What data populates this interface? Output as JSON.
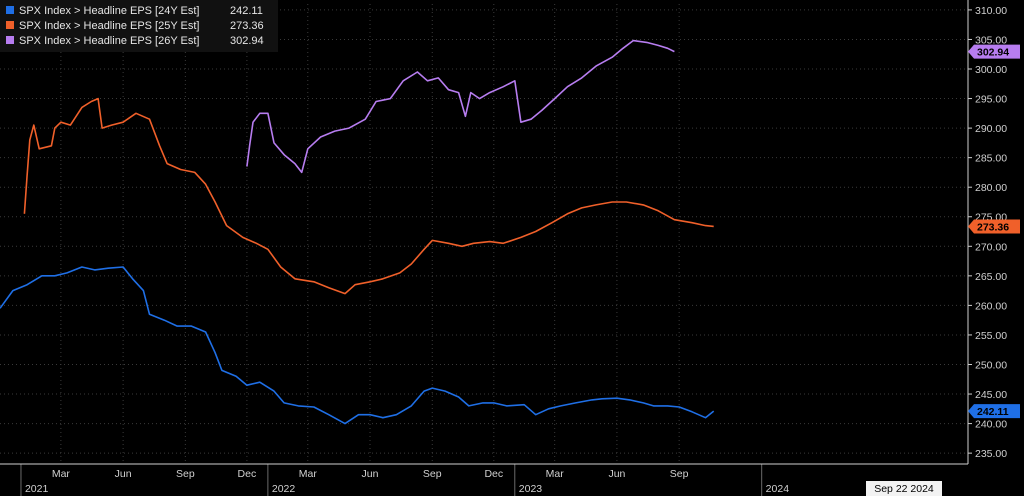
{
  "chart_data": {
    "type": "line",
    "title": "",
    "xlabel": "",
    "ylabel": "",
    "ylim": [
      233.5,
      311
    ],
    "y_ticks": [
      235,
      240,
      245,
      250,
      255,
      260,
      265,
      270,
      275,
      280,
      285,
      290,
      295,
      300,
      305,
      310
    ],
    "y_tick_labels": [
      "235.00",
      "240.00",
      "245.00",
      "250.00",
      "255.00",
      "260.00",
      "265.00",
      "270.00",
      "275.00",
      "280.00",
      "285.00",
      "290.00",
      "295.00",
      "300.00",
      "305.00",
      "310.00"
    ],
    "x_range": [
      "2020-12-01",
      "2024-11-01"
    ],
    "x_month_ticks": [
      {
        "date": "2021-03-01",
        "label": "Mar"
      },
      {
        "date": "2021-06-01",
        "label": "Jun"
      },
      {
        "date": "2021-09-01",
        "label": "Sep"
      },
      {
        "date": "2021-12-01",
        "label": "Dec"
      },
      {
        "date": "2022-03-01",
        "label": "Mar"
      },
      {
        "date": "2022-06-01",
        "label": "Jun"
      },
      {
        "date": "2022-09-01",
        "label": "Sep"
      },
      {
        "date": "2022-12-01",
        "label": "Dec"
      },
      {
        "date": "2023-03-01",
        "label": "Mar"
      },
      {
        "date": "2023-06-01",
        "label": "Jun"
      },
      {
        "date": "2023-09-01",
        "label": "Sep"
      }
    ],
    "x_year_labels": [
      {
        "date": "2021-01-01",
        "label": "2021"
      },
      {
        "date": "2022-01-01",
        "label": "2022"
      },
      {
        "date": "2023-01-01",
        "label": "2023"
      },
      {
        "date": "2024-01-01",
        "label": "2024"
      }
    ],
    "current_date_label": "Sep 22 2024",
    "grid": true,
    "legend_placement": "top-left",
    "series": [
      {
        "name": "SPX Index > Headline EPS [24Y Est]",
        "last_value_label": "242.11",
        "color": "#1f6fe6",
        "points": [
          [
            "2020-12-01",
            259.5
          ],
          [
            "2020-12-20",
            262.5
          ],
          [
            "2021-01-10",
            263.5
          ],
          [
            "2021-02-01",
            265.0
          ],
          [
            "2021-02-20",
            265.0
          ],
          [
            "2021-03-10",
            265.5
          ],
          [
            "2021-04-01",
            266.5
          ],
          [
            "2021-04-20",
            266.0
          ],
          [
            "2021-05-10",
            266.3
          ],
          [
            "2021-06-01",
            266.5
          ],
          [
            "2021-06-15",
            264.5
          ],
          [
            "2021-07-01",
            262.5
          ],
          [
            "2021-07-10",
            258.5
          ],
          [
            "2021-08-01",
            257.5
          ],
          [
            "2021-08-20",
            256.5
          ],
          [
            "2021-09-10",
            256.5
          ],
          [
            "2021-10-01",
            255.5
          ],
          [
            "2021-10-15",
            252.0
          ],
          [
            "2021-10-25",
            249.0
          ],
          [
            "2021-11-15",
            248.0
          ],
          [
            "2021-12-01",
            246.5
          ],
          [
            "2021-12-20",
            247.0
          ],
          [
            "2022-01-10",
            245.5
          ],
          [
            "2022-01-25",
            243.5
          ],
          [
            "2022-02-15",
            243.0
          ],
          [
            "2022-03-10",
            242.8
          ],
          [
            "2022-04-01",
            241.5
          ],
          [
            "2022-04-25",
            240.0
          ],
          [
            "2022-05-15",
            241.5
          ],
          [
            "2022-06-01",
            241.5
          ],
          [
            "2022-06-20",
            241.0
          ],
          [
            "2022-07-10",
            241.5
          ],
          [
            "2022-08-01",
            243.0
          ],
          [
            "2022-08-20",
            245.5
          ],
          [
            "2022-09-01",
            246.0
          ],
          [
            "2022-09-20",
            245.5
          ],
          [
            "2022-10-10",
            244.5
          ],
          [
            "2022-10-25",
            243.0
          ],
          [
            "2022-11-15",
            243.5
          ],
          [
            "2022-12-01",
            243.5
          ],
          [
            "2022-12-20",
            243.0
          ],
          [
            "2023-01-15",
            243.2
          ],
          [
            "2023-02-01",
            241.5
          ],
          [
            "2023-02-20",
            242.5
          ],
          [
            "2023-03-10",
            243.0
          ],
          [
            "2023-04-01",
            243.5
          ],
          [
            "2023-04-25",
            244.0
          ],
          [
            "2023-05-10",
            244.2
          ],
          [
            "2023-06-01",
            244.3
          ],
          [
            "2023-06-20",
            244.0
          ],
          [
            "2023-07-10",
            243.5
          ],
          [
            "2023-07-25",
            243.0
          ],
          [
            "2023-08-15",
            243.0
          ],
          [
            "2023-09-01",
            242.8
          ],
          [
            "2023-09-20",
            242.0
          ],
          [
            "2023-10-10",
            241.0
          ],
          [
            "2023-10-22",
            242.11
          ]
        ]
      },
      {
        "name": "SPX Index > Headline EPS [25Y Est]",
        "last_value_label": "273.36",
        "color": "#f0602a",
        "points": [
          [
            "2021-01-06",
            275.5
          ],
          [
            "2021-01-10",
            282.0
          ],
          [
            "2021-01-14",
            288.0
          ],
          [
            "2021-01-20",
            290.5
          ],
          [
            "2021-01-28",
            286.5
          ],
          [
            "2021-02-15",
            287.0
          ],
          [
            "2021-02-20",
            290.0
          ],
          [
            "2021-03-01",
            291.0
          ],
          [
            "2021-03-15",
            290.5
          ],
          [
            "2021-04-01",
            293.5
          ],
          [
            "2021-04-15",
            294.5
          ],
          [
            "2021-04-25",
            295.0
          ],
          [
            "2021-05-01",
            290.0
          ],
          [
            "2021-05-15",
            290.5
          ],
          [
            "2021-06-01",
            291.0
          ],
          [
            "2021-06-20",
            292.5
          ],
          [
            "2021-07-10",
            291.5
          ],
          [
            "2021-07-25",
            287.0
          ],
          [
            "2021-08-05",
            284.0
          ],
          [
            "2021-08-25",
            283.0
          ],
          [
            "2021-09-15",
            282.5
          ],
          [
            "2021-10-01",
            280.5
          ],
          [
            "2021-10-15",
            277.5
          ],
          [
            "2021-11-01",
            273.5
          ],
          [
            "2021-11-25",
            271.5
          ],
          [
            "2021-12-15",
            270.5
          ],
          [
            "2022-01-01",
            269.5
          ],
          [
            "2022-01-20",
            266.5
          ],
          [
            "2022-02-10",
            264.5
          ],
          [
            "2022-03-10",
            264.0
          ],
          [
            "2022-04-01",
            263.0
          ],
          [
            "2022-04-25",
            262.0
          ],
          [
            "2022-05-10",
            263.5
          ],
          [
            "2022-06-01",
            264.0
          ],
          [
            "2022-06-20",
            264.5
          ],
          [
            "2022-07-15",
            265.5
          ],
          [
            "2022-08-01",
            267.0
          ],
          [
            "2022-08-20",
            269.5
          ],
          [
            "2022-09-01",
            271.0
          ],
          [
            "2022-09-25",
            270.5
          ],
          [
            "2022-10-15",
            270.0
          ],
          [
            "2022-11-01",
            270.5
          ],
          [
            "2022-11-25",
            270.8
          ],
          [
            "2022-12-15",
            270.5
          ],
          [
            "2023-01-10",
            271.5
          ],
          [
            "2023-02-01",
            272.5
          ],
          [
            "2023-02-25",
            274.0
          ],
          [
            "2023-03-20",
            275.5
          ],
          [
            "2023-04-10",
            276.5
          ],
          [
            "2023-05-01",
            277.0
          ],
          [
            "2023-05-25",
            277.5
          ],
          [
            "2023-06-15",
            277.5
          ],
          [
            "2023-07-10",
            277.0
          ],
          [
            "2023-08-01",
            276.0
          ],
          [
            "2023-08-25",
            274.5
          ],
          [
            "2023-09-20",
            274.0
          ],
          [
            "2023-10-10",
            273.5
          ],
          [
            "2023-10-22",
            273.36
          ]
        ]
      },
      {
        "name": "SPX Index > Headline EPS [26Y Est]",
        "last_value_label": "302.94",
        "color": "#b77df0",
        "points": [
          [
            "2021-12-01",
            283.5
          ],
          [
            "2021-12-05",
            287.0
          ],
          [
            "2021-12-10",
            291.0
          ],
          [
            "2021-12-20",
            292.5
          ],
          [
            "2022-01-01",
            292.5
          ],
          [
            "2022-01-10",
            287.5
          ],
          [
            "2022-01-25",
            285.5
          ],
          [
            "2022-02-10",
            284.0
          ],
          [
            "2022-02-20",
            282.5
          ],
          [
            "2022-03-01",
            286.5
          ],
          [
            "2022-03-20",
            288.5
          ],
          [
            "2022-04-10",
            289.5
          ],
          [
            "2022-05-01",
            290.0
          ],
          [
            "2022-05-25",
            291.5
          ],
          [
            "2022-06-10",
            294.5
          ],
          [
            "2022-07-01",
            295.0
          ],
          [
            "2022-07-20",
            298.0
          ],
          [
            "2022-08-10",
            299.5
          ],
          [
            "2022-08-25",
            298.0
          ],
          [
            "2022-09-10",
            298.5
          ],
          [
            "2022-09-25",
            296.5
          ],
          [
            "2022-10-10",
            296.0
          ],
          [
            "2022-10-20",
            292.0
          ],
          [
            "2022-10-28",
            296.0
          ],
          [
            "2022-11-10",
            295.0
          ],
          [
            "2022-11-25",
            296.0
          ],
          [
            "2022-12-15",
            297.0
          ],
          [
            "2023-01-01",
            298.0
          ],
          [
            "2023-01-10",
            291.0
          ],
          [
            "2023-01-25",
            291.5
          ],
          [
            "2023-02-10",
            293.0
          ],
          [
            "2023-03-01",
            295.0
          ],
          [
            "2023-03-20",
            297.0
          ],
          [
            "2023-04-10",
            298.5
          ],
          [
            "2023-05-01",
            300.5
          ],
          [
            "2023-05-25",
            302.0
          ],
          [
            "2023-06-10",
            303.5
          ],
          [
            "2023-06-25",
            304.8
          ],
          [
            "2023-07-15",
            304.5
          ],
          [
            "2023-08-01",
            304.0
          ],
          [
            "2023-08-15",
            303.5
          ],
          [
            "2023-08-25",
            302.94
          ]
        ]
      }
    ]
  }
}
